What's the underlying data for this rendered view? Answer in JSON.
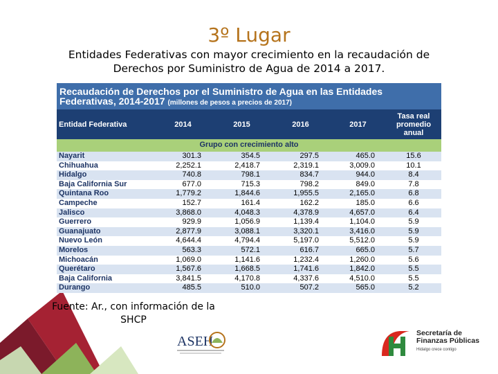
{
  "slide": {
    "title": "3º Lugar",
    "subtitle": "Entidades Federativas con mayor crecimiento en la recaudación de Derechos por Suministro de Agua de 2014 a 2017."
  },
  "table": {
    "title_line1": "Recaudación de Derechos por el Suministro de Agua en las Entidades",
    "title_line2": "Federativas, 2014-2017",
    "title_units": "(millones de pesos a precios de 2017)",
    "headers": [
      "Entidad Federativa",
      "2014",
      "2015",
      "2016",
      "2017",
      "Tasa real promedio anual"
    ],
    "group_label": "Grupo con crecimiento alto",
    "rows": [
      {
        "entidad": "Nayarit",
        "v2014": "301.3",
        "v2015": "354.5",
        "v2016": "297.5",
        "v2017": "465.0",
        "tasa": "15.6"
      },
      {
        "entidad": "Chihuahua",
        "v2014": "2,252.1",
        "v2015": "2,418.7",
        "v2016": "2,319.1",
        "v2017": "3,009.0",
        "tasa": "10.1"
      },
      {
        "entidad": "Hidalgo",
        "v2014": "740.8",
        "v2015": "798.1",
        "v2016": "834.7",
        "v2017": "944.0",
        "tasa": "8.4"
      },
      {
        "entidad": "Baja California Sur",
        "v2014": "677.0",
        "v2015": "715.3",
        "v2016": "798.2",
        "v2017": "849.0",
        "tasa": "7.8"
      },
      {
        "entidad": "Quintana Roo",
        "v2014": "1,779.2",
        "v2015": "1,844.6",
        "v2016": "1,955.5",
        "v2017": "2,165.0",
        "tasa": "6.8"
      },
      {
        "entidad": "Campeche",
        "v2014": "152.7",
        "v2015": "161.4",
        "v2016": "162.2",
        "v2017": "185.0",
        "tasa": "6.6"
      },
      {
        "entidad": "Jalisco",
        "v2014": "3,868.0",
        "v2015": "4,048.3",
        "v2016": "4,378.9",
        "v2017": "4,657.0",
        "tasa": "6.4"
      },
      {
        "entidad": "Guerrero",
        "v2014": "929.9",
        "v2015": "1,056.9",
        "v2016": "1,139.4",
        "v2017": "1,104.0",
        "tasa": "5.9"
      },
      {
        "entidad": "Guanajuato",
        "v2014": "2,877.9",
        "v2015": "3,088.1",
        "v2016": "3,320.1",
        "v2017": "3,416.0",
        "tasa": "5.9"
      },
      {
        "entidad": "Nuevo León",
        "v2014": "4,644.4",
        "v2015": "4,794.4",
        "v2016": "5,197.0",
        "v2017": "5,512.0",
        "tasa": "5.9"
      },
      {
        "entidad": "Morelos",
        "v2014": "563.3",
        "v2015": "572.1",
        "v2016": "616.7",
        "v2017": "665.0",
        "tasa": "5.7"
      },
      {
        "entidad": "Michoacán",
        "v2014": "1,069.0",
        "v2015": "1,141.6",
        "v2016": "1,232.4",
        "v2017": "1,260.0",
        "tasa": "5.6"
      },
      {
        "entidad": "Querétaro",
        "v2014": "1,567.6",
        "v2015": "1,668.5",
        "v2016": "1,741.6",
        "v2017": "1,842.0",
        "tasa": "5.5"
      },
      {
        "entidad": "Baja California",
        "v2014": "3,841.5",
        "v2015": "4,170.8",
        "v2016": "4,337.6",
        "v2017": "4,510.0",
        "tasa": "5.5"
      },
      {
        "entidad": "Durango",
        "v2014": "485.5",
        "v2015": "510.0",
        "v2016": "507.2",
        "v2017": "565.0",
        "tasa": "5.2"
      }
    ]
  },
  "source": {
    "text": "Fuente: Ar., con información de la SHCP"
  },
  "logos": {
    "asei_text": "ASEH",
    "sf_line1": "Secretaría de",
    "sf_line2": "Finanzas Públicas",
    "sf_slogan": "Hidalgo crece contigo"
  },
  "colors": {
    "title": "#b5731c",
    "header_dark": "#1d3f73",
    "header_light": "#3f6eaa",
    "group_green": "#a9d07a",
    "stripe": "#d9e3f1"
  }
}
